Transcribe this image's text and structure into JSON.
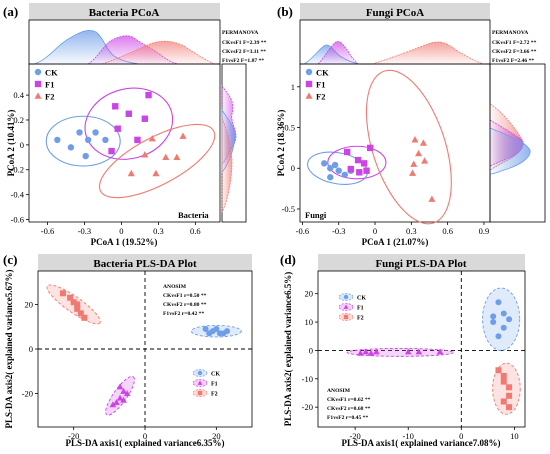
{
  "colors": {
    "CK": "#6e9ee8",
    "F1": "#cc44e6",
    "F2": "#f07a72",
    "title_bg": "#d9d9d9"
  },
  "chart_data": [
    {
      "type": "scatter",
      "panel_label": "(a)",
      "title": "Bacteria PCoA",
      "xlabel": "PCoA 1 (19.52%)",
      "ylabel": "PCoA 2 (10.41%)",
      "xlim": [
        -0.75,
        0.8
      ],
      "ylim": [
        -0.62,
        0.65
      ],
      "xticks": [
        "-0.6",
        "-0.3",
        "0",
        "0.3",
        "0.6"
      ],
      "xtick_values": [
        -0.6,
        -0.3,
        0,
        0.3,
        0.6
      ],
      "yticks": [
        "-0.6",
        "-0.4",
        "-0.2",
        "0",
        "0.2",
        "0.4"
      ],
      "ytick_values": [
        -0.6,
        -0.4,
        -0.2,
        0,
        0.2,
        0.4
      ],
      "corner_label": "Bacteria",
      "stats_title": "PERMANOVA",
      "stats": [
        "CKvsF1 F=2.39 **",
        "CKvsF2 F=3.11 **",
        "F1vsF2 F=1.87 **"
      ],
      "legend": [
        "CK",
        "F1",
        "F2"
      ],
      "legend_position": "top-left",
      "series": [
        {
          "name": "CK",
          "marker": "circle",
          "points": [
            [
              -0.52,
              0.04
            ],
            [
              -0.41,
              -0.02
            ],
            [
              -0.34,
              0.1
            ],
            [
              -0.27,
              0.04
            ],
            [
              -0.21,
              0.1
            ],
            [
              -0.13,
              0.04
            ],
            [
              -0.29,
              -0.09
            ]
          ]
        },
        {
          "name": "F1",
          "marker": "square",
          "points": [
            [
              -0.05,
              0.31
            ],
            [
              0.22,
              0.4
            ],
            [
              0.06,
              0.25
            ],
            [
              0.19,
              0.21
            ],
            [
              -0.03,
              0.13
            ],
            [
              -0.08,
              -0.05
            ],
            [
              0.13,
              0.04
            ]
          ]
        },
        {
          "name": "F2",
          "marker": "triangle",
          "points": [
            [
              0.25,
              0.05
            ],
            [
              0.5,
              0.07
            ],
            [
              0.19,
              -0.08
            ],
            [
              0.36,
              -0.1
            ],
            [
              0.45,
              -0.1
            ],
            [
              0.08,
              -0.23
            ],
            [
              0.28,
              -0.23
            ]
          ]
        }
      ],
      "ellipses": [
        {
          "name": "CK",
          "cx": -0.31,
          "cy": 0.03,
          "rx": 0.3,
          "ry": 0.2,
          "angle": 0
        },
        {
          "name": "F1",
          "cx": 0.06,
          "cy": 0.17,
          "rx": 0.36,
          "ry": 0.28,
          "angle": -15
        },
        {
          "name": "F2",
          "cx": 0.29,
          "cy": -0.13,
          "rx": 0.52,
          "ry": 0.19,
          "angle": -28
        }
      ]
    },
    {
      "type": "scatter",
      "panel_label": "(b)",
      "title": "Fungi PCoA",
      "xlabel": "PCoA 1 (21.07%)",
      "ylabel": "PCoA 2 (18.36%)",
      "xlim": [
        -0.62,
        0.95
      ],
      "ylim": [
        -0.66,
        1.28
      ],
      "xticks": [
        "-0.6",
        "-0.3",
        "0",
        "0.3",
        "0.6",
        "0.9"
      ],
      "xtick_values": [
        -0.6,
        -0.3,
        0,
        0.3,
        0.6,
        0.9
      ],
      "yticks": [
        "-0.5",
        "0",
        "0.5",
        "1"
      ],
      "ytick_values": [
        -0.5,
        0,
        0.5,
        1
      ],
      "corner_label": "Fungi",
      "stats_title": "PERMANOVA",
      "stats": [
        "CKvsF1 F=2.72 **",
        "CKvsF2 F=3.66 **",
        "F1vsF2 F=2.46 **"
      ],
      "legend": [
        "CK",
        "F1",
        "F2"
      ],
      "legend_position": "top-left",
      "series": [
        {
          "name": "CK",
          "marker": "circle",
          "points": [
            [
              -0.42,
              0.06
            ],
            [
              -0.37,
              0.0
            ],
            [
              -0.33,
              0.04
            ],
            [
              -0.3,
              -0.03
            ],
            [
              -0.25,
              -0.08
            ],
            [
              -0.2,
              -0.03
            ],
            [
              -0.37,
              -0.11
            ]
          ]
        },
        {
          "name": "F1",
          "marker": "square",
          "points": [
            [
              -0.23,
              0.2
            ],
            [
              -0.14,
              0.1
            ],
            [
              -0.09,
              0.06
            ],
            [
              -0.04,
              0.25
            ],
            [
              -0.13,
              -0.05
            ],
            [
              -0.2,
              -0.01
            ],
            [
              -0.07,
              -0.03
            ]
          ]
        },
        {
          "name": "F2",
          "marker": "triangle",
          "points": [
            [
              0.33,
              0.35
            ],
            [
              0.4,
              0.31
            ],
            [
              0.36,
              0.18
            ],
            [
              0.41,
              0.09
            ],
            [
              0.31,
              -0.06
            ],
            [
              0.47,
              -0.38
            ],
            [
              0.32,
              0.05
            ]
          ]
        }
      ],
      "ellipses": [
        {
          "name": "CK",
          "cx": -0.31,
          "cy": 0.0,
          "rx": 0.25,
          "ry": 0.19,
          "angle": 10
        },
        {
          "name": "F1",
          "cx": -0.15,
          "cy": 0.07,
          "rx": 0.24,
          "ry": 0.2,
          "angle": 0
        },
        {
          "name": "F2",
          "cx": 0.28,
          "cy": 0.26,
          "rx": 0.3,
          "ry": 0.98,
          "angle": -18
        }
      ]
    },
    {
      "type": "scatter",
      "panel_label": "(c)",
      "title": "Bacteria PLS-DA Plot",
      "xlabel": "PLS-DA axis1( explained variance6.35%)",
      "ylabel": "PLS-DA axis2( explained variance5.67%)",
      "xlim": [
        -30,
        30
      ],
      "ylim": [
        -35,
        35
      ],
      "xticks": [
        "-20",
        "0",
        "20"
      ],
      "xtick_values": [
        -20,
        0,
        20
      ],
      "yticks": [
        "-20",
        "0",
        "20"
      ],
      "ytick_values": [
        -20,
        0,
        20
      ],
      "zero_lines": true,
      "stats_title": "ANOSIM",
      "stats": [
        "CKvsF1 r=0.50 **",
        "CKvsF2 r=0.80 **",
        "F1vsF2 r=0.42 **"
      ],
      "legend": [
        "CK",
        "F1",
        "F2"
      ],
      "legend_position": "bottom-right",
      "series": [
        {
          "name": "CK",
          "marker": "circle",
          "points": [
            [
              17,
              9
            ],
            [
              19,
              8
            ],
            [
              21,
              7
            ],
            [
              20,
              9
            ],
            [
              22,
              7
            ],
            [
              23,
              8
            ],
            [
              18,
              7
            ]
          ]
        },
        {
          "name": "F1",
          "marker": "triangle",
          "points": [
            [
              -7,
              -17
            ],
            [
              -6,
              -19
            ],
            [
              -5,
              -20
            ],
            [
              -7,
              -22
            ],
            [
              -8,
              -24
            ],
            [
              -9,
              -25
            ],
            [
              -6,
              -23
            ]
          ]
        },
        {
          "name": "F2",
          "marker": "square",
          "points": [
            [
              -23,
              25
            ],
            [
              -21,
              23
            ],
            [
              -20,
              21
            ],
            [
              -19,
              18
            ],
            [
              -18,
              16
            ],
            [
              -17,
              14
            ],
            [
              -19,
              20
            ]
          ]
        }
      ],
      "ellipses": [
        {
          "name": "CK",
          "cx": 20,
          "cy": 8,
          "rx": 7,
          "ry": 2.6,
          "angle": 0
        },
        {
          "name": "F1",
          "cx": -7,
          "cy": -21,
          "rx": 6.5,
          "ry": 3,
          "angle": -55
        },
        {
          "name": "F2",
          "cx": -20,
          "cy": 20,
          "rx": 9,
          "ry": 3.5,
          "angle": 35
        }
      ]
    },
    {
      "type": "scatter",
      "panel_label": "(d)",
      "title": "Fungi PLS-DA Plot",
      "xlabel": "PLS-DA axis1( explained variance7.08%)",
      "ylabel": "PLS-DA axis2( explained variance6.5%)",
      "xlim": [
        -27,
        12
      ],
      "ylim": [
        -27,
        28
      ],
      "xticks": [
        "-20",
        "-10",
        "0",
        "10"
      ],
      "xtick_values": [
        -20,
        -10,
        0,
        10
      ],
      "yticks": [
        "-20",
        "-10",
        "0",
        "10",
        "20"
      ],
      "ytick_values": [
        -20,
        -10,
        0,
        10,
        20
      ],
      "zero_lines": true,
      "stats_title": "ANOSIM",
      "stats": [
        "CKvsF1 r=0.62 **",
        "CKvsF2 r=0.68 **",
        "F1vsF2 r=0.45 **"
      ],
      "legend": [
        "CK",
        "F1",
        "F2"
      ],
      "legend_position": "top-left",
      "series": [
        {
          "name": "CK",
          "marker": "circle",
          "points": [
            [
              7,
              17
            ],
            [
              8,
              13
            ],
            [
              6,
              10
            ],
            [
              8,
              8
            ],
            [
              7,
              5
            ],
            [
              9,
              11
            ],
            [
              6,
              12
            ]
          ]
        },
        {
          "name": "F1",
          "marker": "triangle",
          "points": [
            [
              -19,
              -1
            ],
            [
              -18,
              -0.5
            ],
            [
              -17,
              -1
            ],
            [
              -16,
              -0.5
            ],
            [
              -10,
              -0.5
            ],
            [
              -8,
              -0.5
            ],
            [
              -4,
              -0.5
            ]
          ]
        },
        {
          "name": "F2",
          "marker": "square",
          "points": [
            [
              7,
              -7
            ],
            [
              8,
              -9
            ],
            [
              8,
              -11
            ],
            [
              9,
              -13
            ],
            [
              9,
              -16
            ],
            [
              8,
              -18
            ],
            [
              9,
              -20
            ]
          ]
        }
      ],
      "ellipses": [
        {
          "name": "CK",
          "cx": 7.5,
          "cy": 11,
          "rx": 3.5,
          "ry": 11,
          "angle": 0
        },
        {
          "name": "F1",
          "cx": -11.5,
          "cy": -0.7,
          "rx": 10,
          "ry": 1.4,
          "angle": 0
        },
        {
          "name": "F2",
          "cx": 8.5,
          "cy": -13.5,
          "rx": 2.6,
          "ry": 9,
          "angle": 0
        }
      ]
    }
  ]
}
